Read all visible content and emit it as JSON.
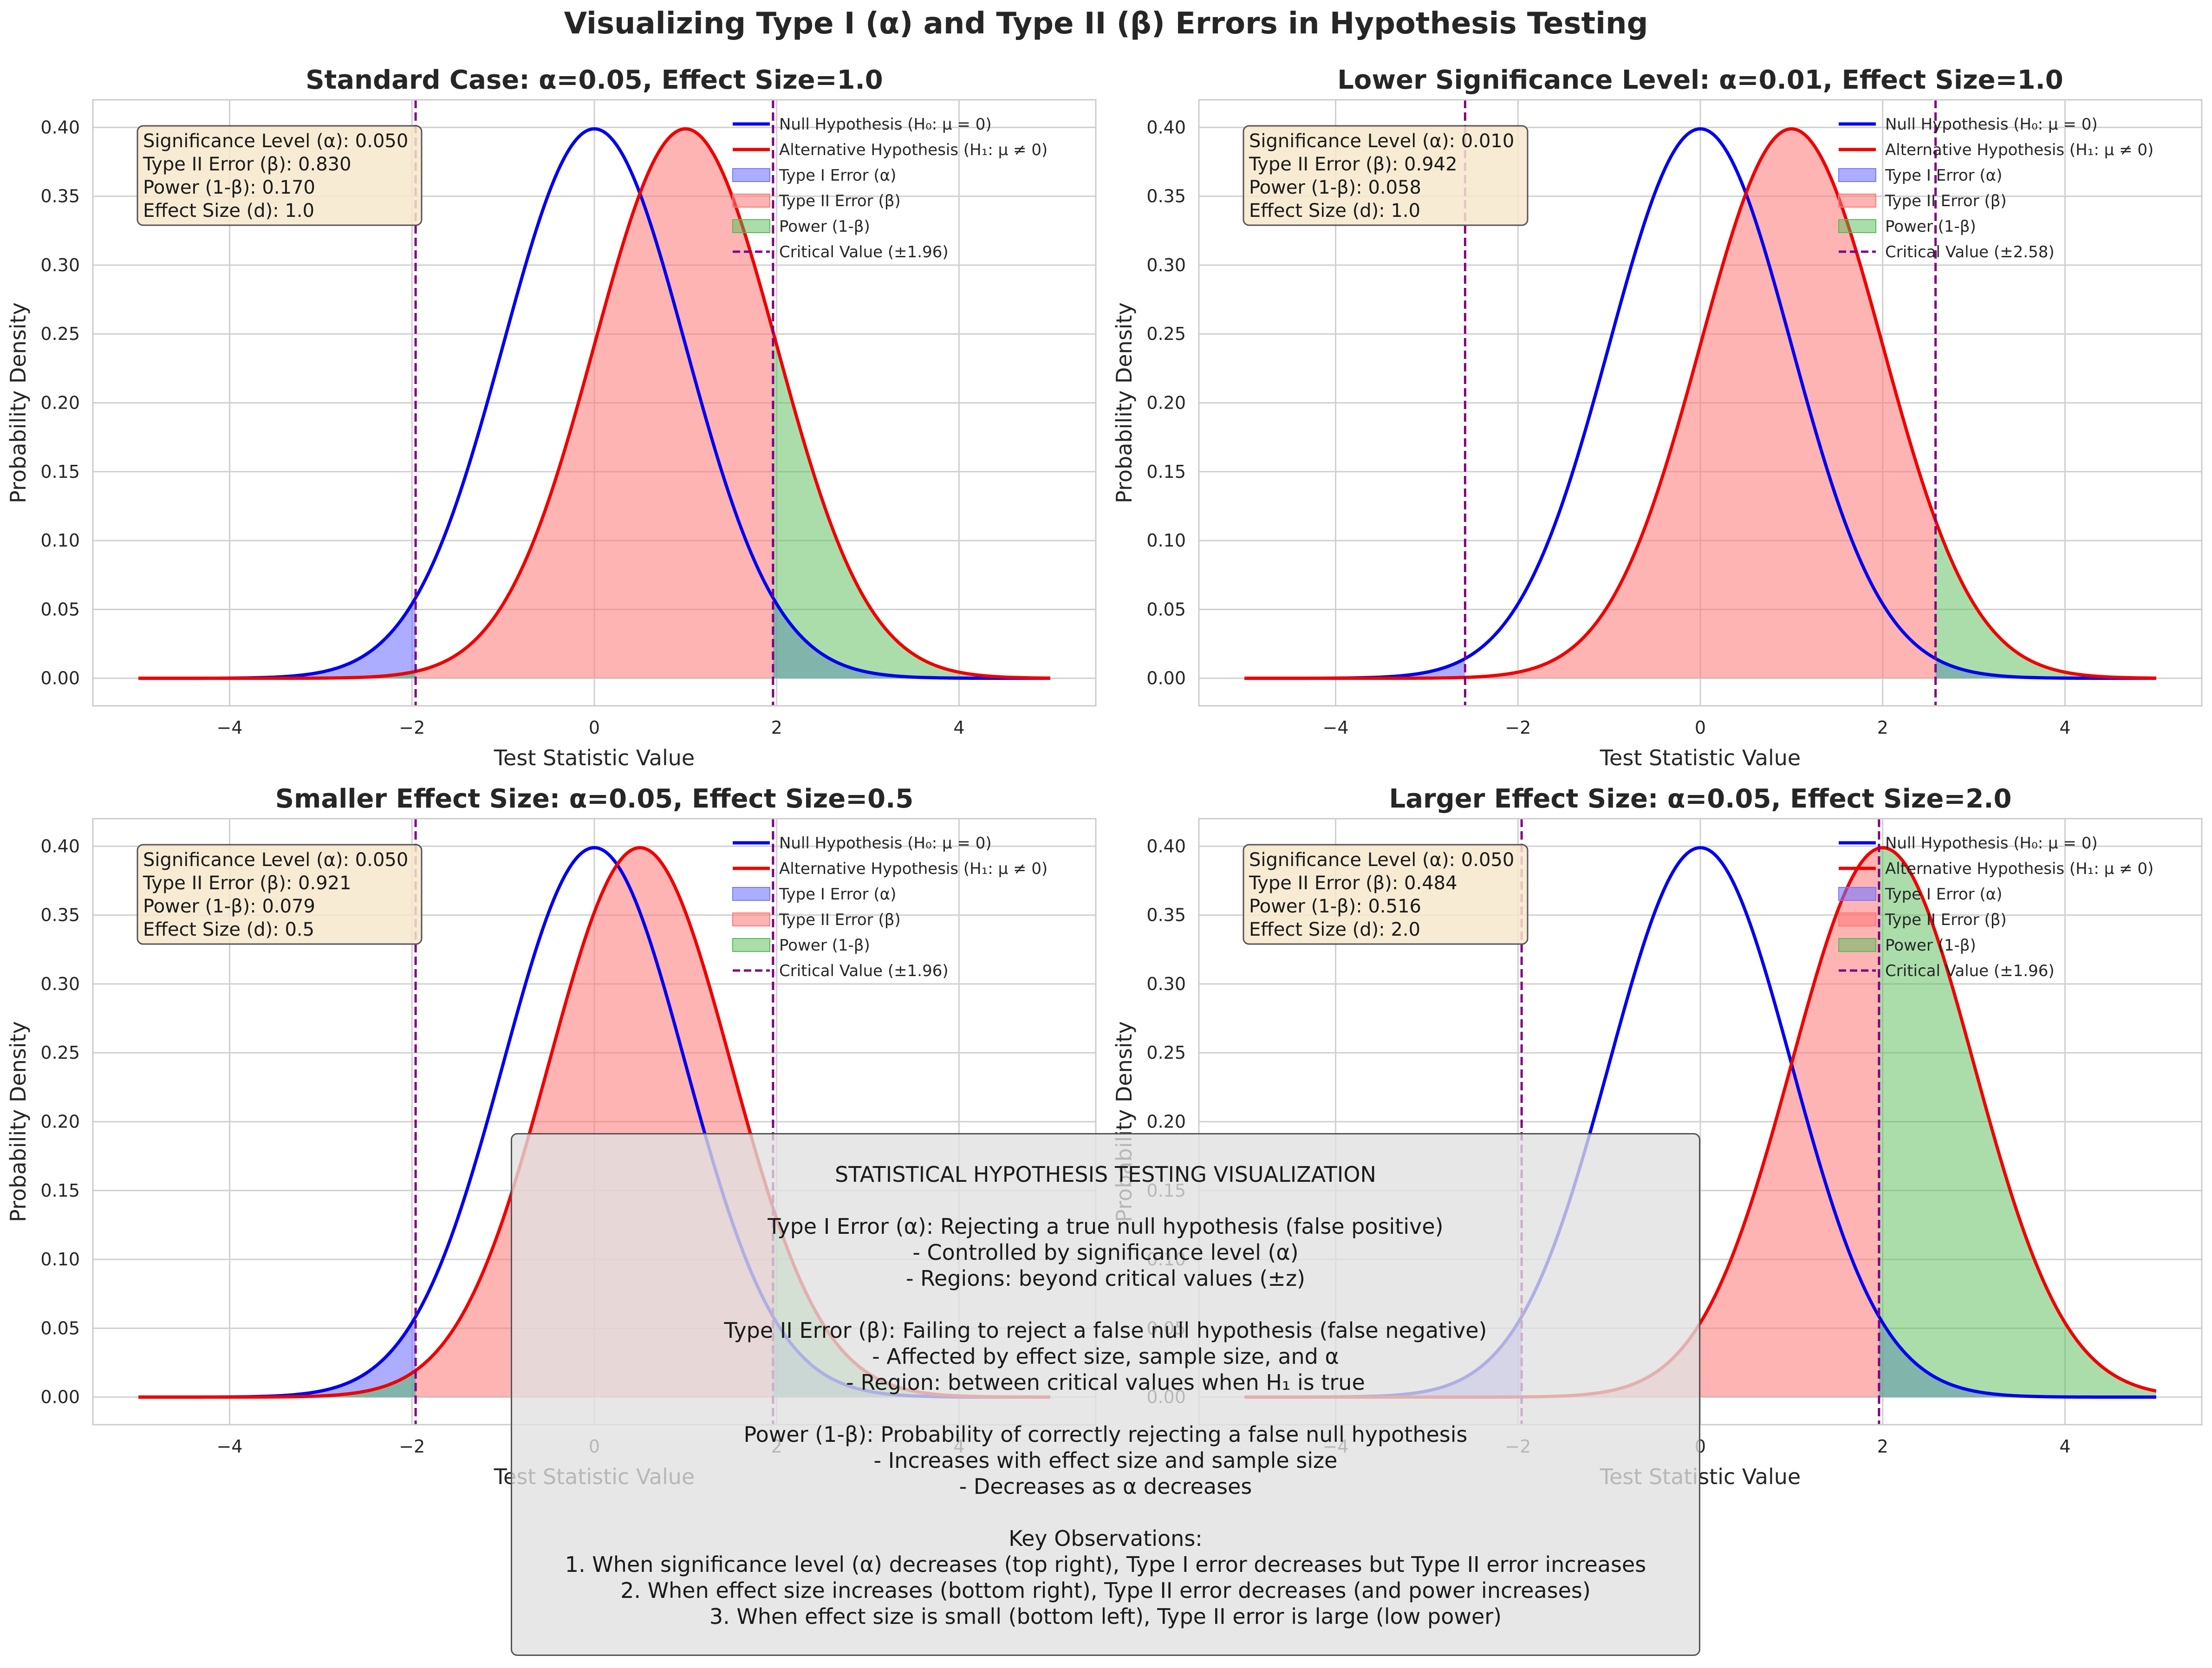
{
  "figure": {
    "suptitle": "Visualizing Type I (α) and Type II (β) Errors in Hypothesis Testing"
  },
  "colors": {
    "null": "#0000ee",
    "alt": "#ee0000",
    "type1_fill": "#7777ff",
    "type2_fill": "#ff7777",
    "power_fill": "#55bb55",
    "critical": "#800080",
    "grid": "#d0d0d0",
    "axes_edge": "#cccccc",
    "stats_box_bg": "#f6e7cb"
  },
  "chart_data": [
    {
      "type": "line",
      "title": "Standard Case: α=0.05, Effect Size=1.0",
      "xlabel": "Test Statistic Value",
      "ylabel": "Probability Density",
      "xlim": [
        -5.5,
        5.5
      ],
      "ylim": [
        -0.02,
        0.42
      ],
      "xticks": [
        "−4",
        "−2",
        "0",
        "2",
        "4"
      ],
      "xtick_values": [
        -4,
        -2,
        0,
        2,
        4
      ],
      "yticks": [
        "0.00",
        "0.05",
        "0.10",
        "0.15",
        "0.20",
        "0.25",
        "0.30",
        "0.35",
        "0.40"
      ],
      "ytick_values": [
        0,
        0.05,
        0.1,
        0.15,
        0.2,
        0.25,
        0.3,
        0.35,
        0.4
      ],
      "null_mean": 0,
      "alt_mean": 1.0,
      "critical_value": 1.96,
      "x_range": [
        -5,
        5
      ],
      "legend_position": "top-right",
      "legend": [
        "Null Hypothesis (H₀: μ = 0)",
        "Alternative Hypothesis (H₁: μ ≠ 0)",
        "Type I Error (α)",
        "Type II Error (β)",
        "Power (1-β)",
        "Critical Value (±1.96)"
      ],
      "stats": [
        "Significance Level (α): 0.050",
        "Type II Error (β): 0.830",
        "Power (1-β): 0.170",
        "Effect Size (d): 1.0"
      ],
      "grid": true
    },
    {
      "type": "line",
      "title": "Lower Significance Level: α=0.01, Effect Size=1.0",
      "xlabel": "Test Statistic Value",
      "ylabel": "Probability Density",
      "xlim": [
        -5.5,
        5.5
      ],
      "ylim": [
        -0.02,
        0.42
      ],
      "xticks": [
        "−4",
        "−2",
        "0",
        "2",
        "4"
      ],
      "xtick_values": [
        -4,
        -2,
        0,
        2,
        4
      ],
      "yticks": [
        "0.00",
        "0.05",
        "0.10",
        "0.15",
        "0.20",
        "0.25",
        "0.30",
        "0.35",
        "0.40"
      ],
      "ytick_values": [
        0,
        0.05,
        0.1,
        0.15,
        0.2,
        0.25,
        0.3,
        0.35,
        0.4
      ],
      "null_mean": 0,
      "alt_mean": 1.0,
      "critical_value": 2.58,
      "x_range": [
        -5,
        5
      ],
      "legend_position": "top-right",
      "legend": [
        "Null Hypothesis (H₀: μ = 0)",
        "Alternative Hypothesis (H₁: μ ≠ 0)",
        "Type I Error (α)",
        "Type II Error (β)",
        "Power (1-β)",
        "Critical Value (±2.58)"
      ],
      "stats": [
        "Significance Level (α): 0.010",
        "Type II Error (β): 0.942",
        "Power (1-β): 0.058",
        "Effect Size (d): 1.0"
      ],
      "grid": true
    },
    {
      "type": "line",
      "title": "Smaller Effect Size: α=0.05, Effect Size=0.5",
      "xlabel": "Test Statistic Value",
      "ylabel": "Probability Density",
      "xlim": [
        -5.5,
        5.5
      ],
      "ylim": [
        -0.02,
        0.42
      ],
      "xticks": [
        "−4",
        "−2",
        "0",
        "2",
        "4"
      ],
      "xtick_values": [
        -4,
        -2,
        0,
        2,
        4
      ],
      "yticks": [
        "0.00",
        "0.05",
        "0.10",
        "0.15",
        "0.20",
        "0.25",
        "0.30",
        "0.35",
        "0.40"
      ],
      "ytick_values": [
        0,
        0.05,
        0.1,
        0.15,
        0.2,
        0.25,
        0.3,
        0.35,
        0.4
      ],
      "null_mean": 0,
      "alt_mean": 0.5,
      "critical_value": 1.96,
      "x_range": [
        -5,
        5
      ],
      "legend_position": "top-right",
      "legend": [
        "Null Hypothesis (H₀: μ = 0)",
        "Alternative Hypothesis (H₁: μ ≠ 0)",
        "Type I Error (α)",
        "Type II Error (β)",
        "Power (1-β)",
        "Critical Value (±1.96)"
      ],
      "stats": [
        "Significance Level (α): 0.050",
        "Type II Error (β): 0.921",
        "Power (1-β): 0.079",
        "Effect Size (d): 0.5"
      ],
      "grid": true
    },
    {
      "type": "line",
      "title": "Larger Effect Size: α=0.05, Effect Size=2.0",
      "xlabel": "Test Statistic Value",
      "ylabel": "Probability Density",
      "xlim": [
        -5.5,
        5.5
      ],
      "ylim": [
        -0.02,
        0.42
      ],
      "xticks": [
        "−4",
        "−2",
        "0",
        "2",
        "4"
      ],
      "xtick_values": [
        -4,
        -2,
        0,
        2,
        4
      ],
      "yticks": [
        "0.00",
        "0.05",
        "0.10",
        "0.15",
        "0.20",
        "0.25",
        "0.30",
        "0.35",
        "0.40"
      ],
      "ytick_values": [
        0,
        0.05,
        0.1,
        0.15,
        0.2,
        0.25,
        0.3,
        0.35,
        0.4
      ],
      "null_mean": 0,
      "alt_mean": 2.0,
      "critical_value": 1.96,
      "x_range": [
        -5,
        5
      ],
      "legend_position": "top-right",
      "legend": [
        "Null Hypothesis (H₀: μ = 0)",
        "Alternative Hypothesis (H₁: μ ≠ 0)",
        "Type I Error (α)",
        "Type II Error (β)",
        "Power (1-β)",
        "Critical Value (±1.96)"
      ],
      "stats": [
        "Significance Level (α): 0.050",
        "Type II Error (β): 0.484",
        "Power (1-β): 0.516",
        "Effect Size (d): 2.0"
      ],
      "grid": true
    }
  ],
  "summary_box": {
    "lines": [
      "STATISTICAL HYPOTHESIS TESTING VISUALIZATION",
      "",
      "Type I Error (α): Rejecting a true null hypothesis (false positive)",
      "- Controlled by significance level (α)",
      "- Regions: beyond critical values (±z)",
      "",
      "Type II Error (β): Failing to reject a false null hypothesis (false negative)",
      "- Affected by effect size, sample size, and α",
      "- Region: between critical values when H₁ is true",
      "",
      "Power (1-β): Probability of correctly rejecting a false null hypothesis",
      "- Increases with effect size and sample size",
      "- Decreases as α decreases",
      "",
      "Key Observations:",
      "1. When significance level (α) decreases (top right), Type I error decreases but Type II error increases",
      "2. When effect size increases (bottom right), Type II error decreases (and power increases)",
      "3. When effect size is small (bottom left), Type II error is large (low power)"
    ]
  }
}
